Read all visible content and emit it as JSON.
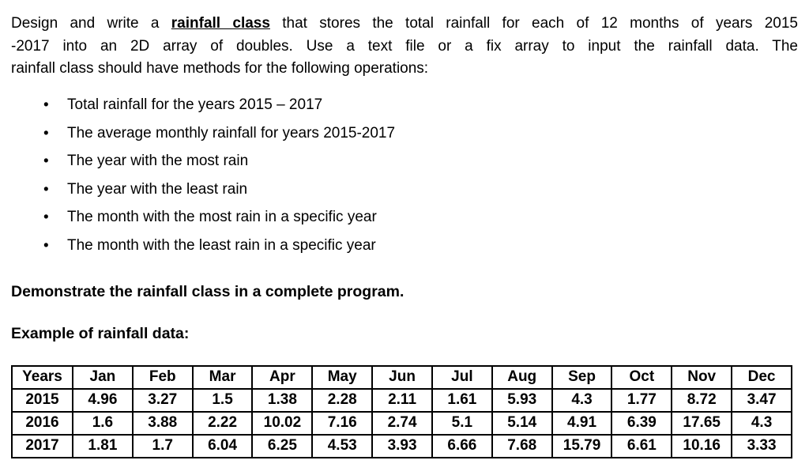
{
  "paragraph": {
    "line1_pre": "Design and write a ",
    "line1_bold": "rainfall class",
    "line1_post": " that stores the total rainfall for each of 12 months of years 2015",
    "line2": "-2017 into an 2D array of doubles. Use a text file or a fix array to input the rainfall data. The",
    "line3": "rainfall class should have methods for the following operations:"
  },
  "bullets": [
    "Total rainfall for the years 2015 – 2017",
    "The average monthly rainfall for years 2015-2017",
    "The year with the most rain",
    "The year with the least rain",
    "The month with the most rain in a specific year",
    "The month with the least rain in a specific year"
  ],
  "demonstrate_line": "Demonstrate the rainfall class in a complete program.",
  "example_line": "Example of rainfall data:",
  "table": {
    "headers": [
      "Years",
      "Jan",
      "Feb",
      "Mar",
      "Apr",
      "May",
      "Jun",
      "Jul",
      "Aug",
      "Sep",
      "Oct",
      "Nov",
      "Dec"
    ],
    "rows": [
      [
        "2015",
        "4.96",
        "3.27",
        "1.5",
        "1.38",
        "2.28",
        "2.11",
        "1.61",
        "5.93",
        "4.3",
        "1.77",
        "8.72",
        "3.47"
      ],
      [
        "2016",
        "1.6",
        "3.88",
        "2.22",
        "10.02",
        "7.16",
        "2.74",
        "5.1",
        "5.14",
        "4.91",
        "6.39",
        "17.65",
        "4.3"
      ],
      [
        "2017",
        "1.81",
        "1.7",
        "6.04",
        "6.25",
        "4.53",
        "3.93",
        "6.66",
        "7.68",
        "15.79",
        "6.61",
        "10.16",
        "3.33"
      ]
    ]
  }
}
